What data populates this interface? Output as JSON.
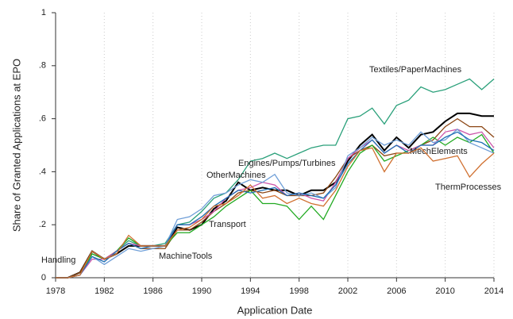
{
  "chart_data": {
    "type": "line",
    "x_label": "Application Date",
    "y_label": "Share of Granted Applications at EPO",
    "x": [
      1978,
      1979,
      1980,
      1981,
      1982,
      1983,
      1984,
      1985,
      1986,
      1987,
      1988,
      1989,
      1990,
      1991,
      1992,
      1993,
      1994,
      1995,
      1996,
      1997,
      1998,
      1999,
      2000,
      2001,
      2002,
      2003,
      2004,
      2005,
      2006,
      2007,
      2008,
      2009,
      2010,
      2011,
      2012,
      2013,
      2014
    ],
    "xlim": [
      1978,
      2014
    ],
    "xticks": [
      1978,
      1982,
      1986,
      1990,
      1994,
      1998,
      2002,
      2006,
      2010,
      2014
    ],
    "ylim": [
      0,
      1
    ],
    "yticks": [
      0,
      {
        "value": 0.2,
        "label": ".2"
      },
      {
        "value": 0.4,
        "label": ".4"
      },
      {
        "value": 0.6,
        "label": ".6"
      },
      {
        "value": 0.8,
        "label": ".8"
      },
      1
    ],
    "grid": true,
    "series": [
      {
        "name": "Textiles/PaperMachines",
        "color": "#2aa07a",
        "values": [
          0,
          0,
          0.02,
          0.09,
          0.07,
          0.1,
          0.14,
          0.12,
          0.12,
          0.13,
          0.2,
          0.21,
          0.25,
          0.3,
          0.32,
          0.37,
          0.44,
          0.45,
          0.47,
          0.45,
          0.47,
          0.49,
          0.5,
          0.5,
          0.6,
          0.61,
          0.64,
          0.58,
          0.65,
          0.67,
          0.72,
          0.7,
          0.71,
          0.73,
          0.75,
          0.71,
          0.75
        ]
      },
      {
        "name": "Handling",
        "color": "#000000",
        "values": [
          0,
          0,
          0.02,
          0.1,
          0.07,
          0.09,
          0.12,
          0.12,
          0.12,
          0.12,
          0.19,
          0.18,
          0.2,
          0.26,
          0.29,
          0.36,
          0.33,
          0.34,
          0.33,
          0.33,
          0.31,
          0.33,
          0.33,
          0.36,
          0.44,
          0.5,
          0.54,
          0.48,
          0.53,
          0.49,
          0.54,
          0.55,
          0.59,
          0.62,
          0.62,
          0.61,
          0.61
        ]
      },
      {
        "name": "MachineTools",
        "color": "#8b4513",
        "values": [
          0,
          0,
          0.02,
          0.1,
          0.07,
          0.1,
          0.13,
          0.11,
          0.11,
          0.11,
          0.18,
          0.18,
          0.21,
          0.25,
          0.28,
          0.32,
          0.33,
          0.32,
          0.33,
          0.31,
          0.31,
          0.31,
          0.32,
          0.38,
          0.45,
          0.48,
          0.5,
          0.46,
          0.47,
          0.47,
          0.5,
          0.52,
          0.57,
          0.6,
          0.57,
          0.57,
          0.53
        ]
      },
      {
        "name": "Transport",
        "color": "#22aa22",
        "values": [
          0,
          0,
          0.01,
          0.09,
          0.07,
          0.1,
          0.15,
          0.12,
          0.12,
          0.12,
          0.17,
          0.17,
          0.2,
          0.23,
          0.27,
          0.3,
          0.33,
          0.28,
          0.28,
          0.27,
          0.22,
          0.27,
          0.22,
          0.31,
          0.4,
          0.47,
          0.5,
          0.44,
          0.46,
          0.48,
          0.5,
          0.53,
          0.5,
          0.53,
          0.51,
          0.54,
          0.47
        ]
      },
      {
        "name": "OtherMachines",
        "color": "#cc55aa",
        "values": [
          0,
          0,
          0.01,
          0.07,
          0.07,
          0.1,
          0.13,
          0.12,
          0.12,
          0.12,
          0.2,
          0.2,
          0.22,
          0.25,
          0.3,
          0.33,
          0.34,
          0.36,
          0.35,
          0.31,
          0.32,
          0.3,
          0.29,
          0.36,
          0.45,
          0.49,
          0.52,
          0.47,
          0.5,
          0.48,
          0.5,
          0.5,
          0.55,
          0.56,
          0.54,
          0.55,
          0.49
        ]
      },
      {
        "name": "Engines/Pumps/Turbines",
        "color": "#6f9fd8",
        "values": [
          0,
          0,
          0.01,
          0.08,
          0.05,
          0.08,
          0.11,
          0.1,
          0.11,
          0.12,
          0.22,
          0.23,
          0.26,
          0.31,
          0.32,
          0.35,
          0.37,
          0.36,
          0.39,
          0.32,
          0.31,
          0.32,
          0.3,
          0.34,
          0.46,
          0.49,
          0.53,
          0.5,
          0.52,
          0.5,
          0.55,
          0.51,
          0.52,
          0.56,
          0.51,
          0.49,
          0.47
        ]
      },
      {
        "name": "MechElements",
        "color": "#1f6fb4",
        "values": [
          0,
          0,
          0.01,
          0.08,
          0.06,
          0.1,
          0.13,
          0.11,
          0.12,
          0.12,
          0.2,
          0.2,
          0.23,
          0.27,
          0.3,
          0.33,
          0.32,
          0.33,
          0.34,
          0.31,
          0.32,
          0.31,
          0.3,
          0.35,
          0.43,
          0.48,
          0.52,
          0.47,
          0.5,
          0.47,
          0.5,
          0.5,
          0.53,
          0.55,
          0.52,
          0.51,
          0.48
        ]
      },
      {
        "name": "ThermProcesses",
        "color": "#d07030",
        "values": [
          0,
          0,
          0.01,
          0.1,
          0.07,
          0.09,
          0.16,
          0.12,
          0.12,
          0.12,
          0.18,
          0.19,
          0.22,
          0.27,
          0.28,
          0.31,
          0.35,
          0.3,
          0.31,
          0.28,
          0.3,
          0.28,
          0.27,
          0.33,
          0.42,
          0.48,
          0.49,
          0.4,
          0.47,
          0.47,
          0.49,
          0.44,
          0.45,
          0.46,
          0.38,
          0.43,
          0.47
        ]
      }
    ]
  }
}
